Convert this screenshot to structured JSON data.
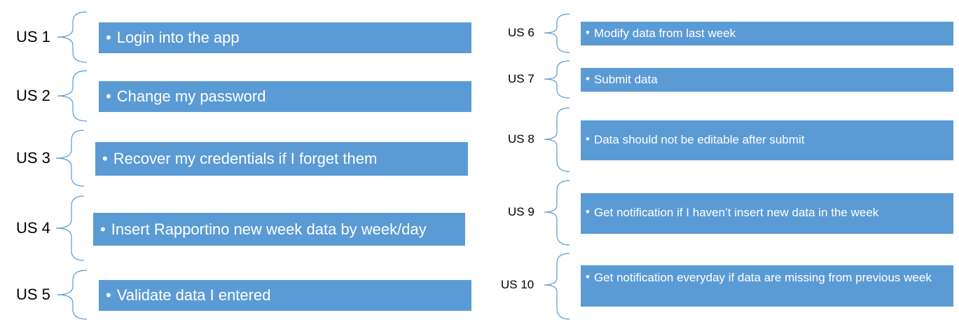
{
  "left_stories": [
    {
      "id": "US 1",
      "text": "Login into the app"
    },
    {
      "id": "US 2",
      "text": "Change my password"
    },
    {
      "id": "US 3",
      "text": "Recover my credentials if I forget them"
    },
    {
      "id": "US 4",
      "text": "Insert Rapportino new week data by week/day"
    },
    {
      "id": "US 5",
      "text": "Validate data I entered"
    }
  ],
  "right_stories": [
    {
      "id": "US 6",
      "text": "Modify data from last week"
    },
    {
      "id": "US 7",
      "text": "Submit data"
    },
    {
      "id": "US 8",
      "text": "Data should not be editable after submit"
    },
    {
      "id": "US 9",
      "text": "Get notification if I haven’t insert new data in the week"
    },
    {
      "id": "US 10",
      "text": "Get notification everyday if data are missing from previous week"
    }
  ],
  "colors": {
    "box_fill": "#5b9bd5",
    "box_text": "#ffffff",
    "brace": "#5b9bd5"
  }
}
